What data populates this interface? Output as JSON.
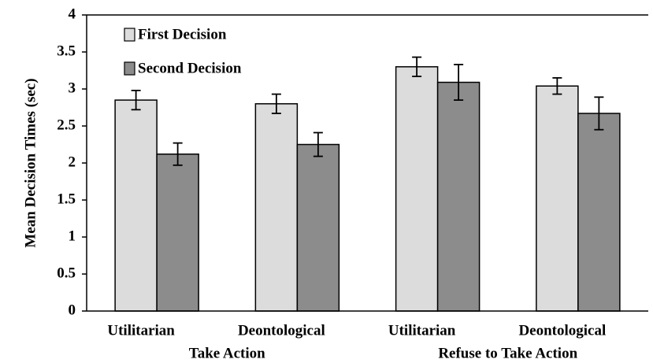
{
  "chart_data": {
    "type": "bar",
    "ylabel": "Mean Decision Times (sec)",
    "categories": [
      "Utilitarian",
      "Deontological",
      "Utilitarian",
      "Deontological"
    ],
    "group_labels": [
      "Take Action",
      "Refuse to Take Action"
    ],
    "series": [
      {
        "name": "First Decision",
        "color": "#dcdcdc",
        "values": [
          2.85,
          2.8,
          3.3,
          3.04
        ],
        "errors": [
          0.13,
          0.13,
          0.13,
          0.11
        ]
      },
      {
        "name": "Second Decision",
        "color": "#8c8c8c",
        "values": [
          2.12,
          2.25,
          3.09,
          2.67
        ],
        "errors": [
          0.15,
          0.16,
          0.24,
          0.22
        ]
      }
    ],
    "ylim": [
      0,
      4
    ],
    "yticks": [
      0,
      0.5,
      1,
      1.5,
      2,
      2.5,
      3,
      3.5,
      4
    ],
    "legend": "upper left"
  }
}
